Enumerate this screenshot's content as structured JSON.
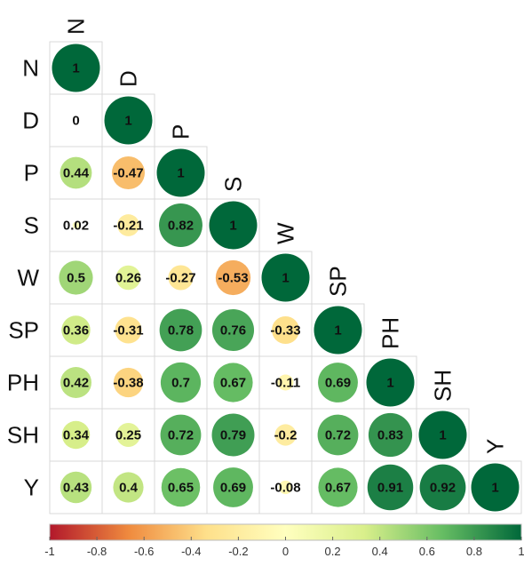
{
  "chart_data": {
    "type": "heatmap",
    "style": "circle-correlation-lower-triangle",
    "variables": [
      "N",
      "D",
      "P",
      "S",
      "W",
      "SP",
      "PH",
      "SH",
      "Y"
    ],
    "matrix": [
      [
        1
      ],
      [
        0,
        1
      ],
      [
        0.44,
        -0.47,
        1
      ],
      [
        0.02,
        -0.21,
        0.82,
        1
      ],
      [
        0.5,
        0.26,
        -0.27,
        -0.53,
        1
      ],
      [
        0.36,
        -0.31,
        0.78,
        0.76,
        -0.33,
        1
      ],
      [
        0.42,
        -0.38,
        0.7,
        0.67,
        -0.11,
        0.69,
        1
      ],
      [
        0.34,
        0.25,
        0.72,
        0.79,
        -0.2,
        0.72,
        0.83,
        1
      ],
      [
        0.43,
        0.4,
        0.65,
        0.69,
        -0.08,
        0.67,
        0.91,
        0.92,
        1
      ]
    ],
    "colorbar": {
      "range": [
        -1,
        1
      ],
      "ticks": [
        "-1",
        "-0.8",
        "-0.6",
        "-0.4",
        "-0.2",
        "0",
        "0.2",
        "0.4",
        "0.6",
        "0.8",
        "1"
      ],
      "colors": [
        "#b2182b",
        "#ef8a3e",
        "#fee08b",
        "#ffffbf",
        "#d9ef8b",
        "#66bd63",
        "#00683a"
      ]
    },
    "title": "",
    "xlabel": "",
    "ylabel": "",
    "grid": true,
    "legend_position": "bottom"
  }
}
